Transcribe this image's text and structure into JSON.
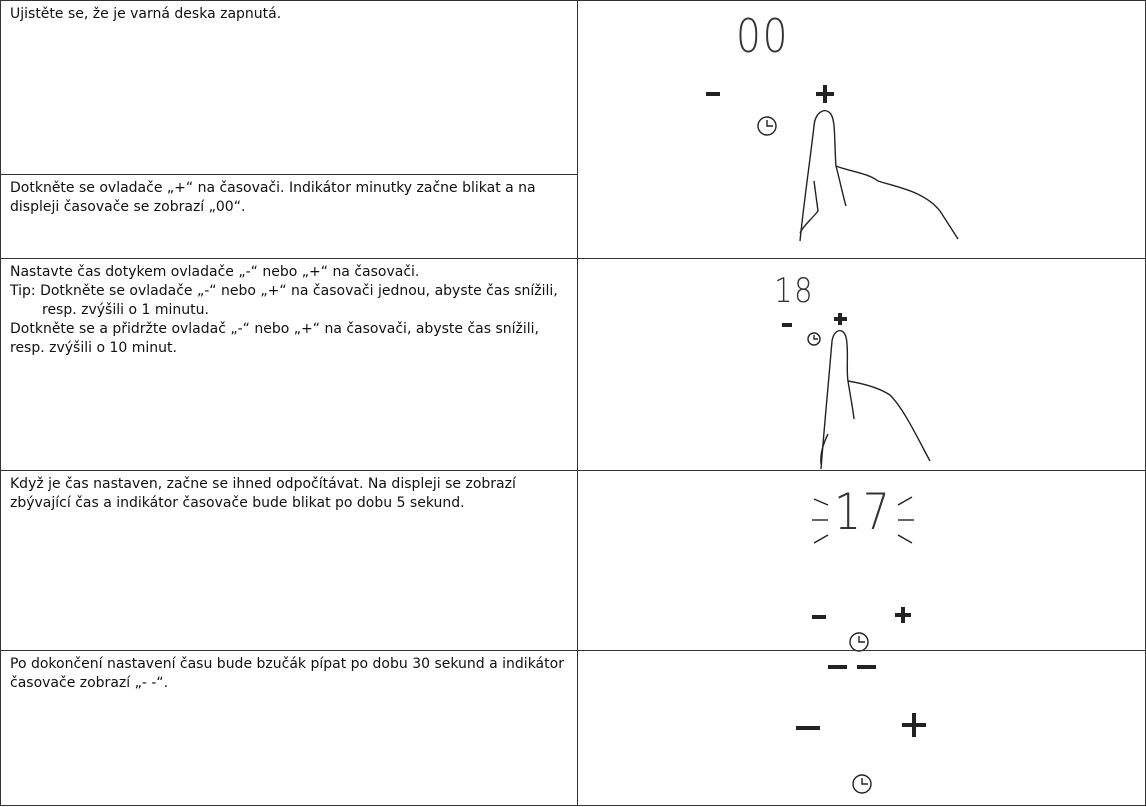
{
  "table": {
    "rows": [
      {
        "left": [
          "Ujistěte se, že je varná deska zapnutá.",
          "Dotkněte se ovladače „+“ na časovači. Indikátor minutky začne blikat a na displeji časovače se zobrazí „00“."
        ],
        "display": "00"
      },
      {
        "left": [
          "Nastavte čas dotykem ovladače „-“ nebo „+“ na časovači.",
          "Tip: Dotkněte se ovladače „-“ nebo „+“ na časovači jednou, abyste čas snížili, resp. zvýšili o 1 minutu.",
          "Dotkněte se a přidržte ovladač „-“ nebo „+“ na časovači, abyste čas snížili, resp. zvýšili o 10 minut."
        ],
        "display": "18"
      },
      {
        "left": [
          "Když je čas nastaven, začne se ihned odpočítávat. Na displeji se zobrazí zbývající čas a indikátor časovače bude blikat po dobu 5 sekund."
        ],
        "display": "17"
      },
      {
        "left": [
          "Po dokončení nastavení času bude bzučák pípat po dobu 30 sekund a indikátor časovače zobrazí „- -“."
        ]
      }
    ]
  }
}
